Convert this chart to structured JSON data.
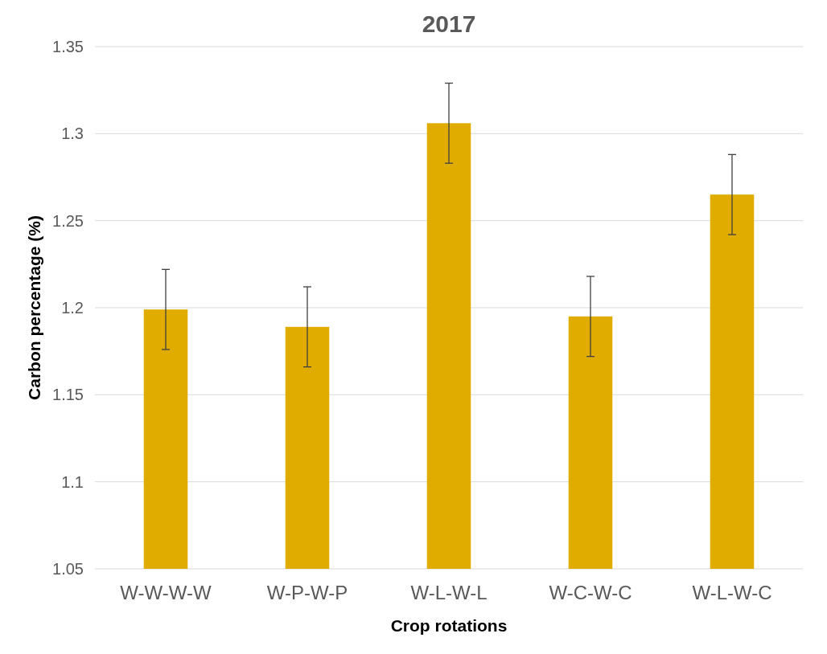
{
  "chart_data": {
    "type": "bar",
    "title": "2017",
    "xlabel": "Crop rotations",
    "ylabel": "Carbon percentage (%)",
    "categories": [
      "W-W-W-W",
      "W-P-W-P",
      "W-L-W-L",
      "W-C-W-C",
      "W-L-W-C"
    ],
    "values": [
      1.199,
      1.189,
      1.306,
      1.195,
      1.265
    ],
    "errors": [
      0.023,
      0.023,
      0.023,
      0.023,
      0.023
    ],
    "color": "#e0ac00",
    "ylim": [
      1.05,
      1.35
    ],
    "yticks": [
      1.05,
      1.1,
      1.15,
      1.2,
      1.25,
      1.3,
      1.35
    ],
    "grid": "y"
  }
}
